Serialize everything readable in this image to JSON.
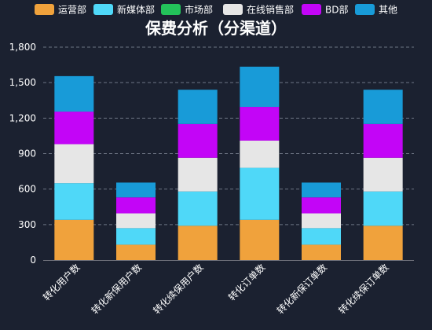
{
  "chart_data": {
    "type": "bar",
    "stacked": true,
    "title": "保费分析（分渠道）",
    "categories": [
      "转化用户数",
      "转化新保用户数",
      "转化续保用户数",
      "转化订单数",
      "转化新保订单数",
      "转化续保订单数"
    ],
    "series": [
      {
        "name": "运营部",
        "color": "#f0a23c",
        "values": [
          340,
          130,
          290,
          340,
          130,
          290
        ]
      },
      {
        "name": "新媒体部",
        "color": "#4fd8f8",
        "values": [
          310,
          140,
          290,
          440,
          140,
          290
        ]
      },
      {
        "name": "市场部",
        "color": "#23c25a",
        "values": [
          0,
          0,
          0,
          0,
          0,
          0
        ]
      },
      {
        "name": "在线销售部",
        "color": "#e6e6e6",
        "values": [
          330,
          125,
          285,
          230,
          125,
          285
        ]
      },
      {
        "name": "BD部",
        "color": "#c305f7",
        "values": [
          275,
          135,
          285,
          285,
          135,
          285
        ]
      },
      {
        "name": "其他",
        "color": "#189bd8",
        "values": [
          300,
          125,
          290,
          340,
          125,
          290
        ]
      }
    ],
    "y_ticks": [
      "0",
      "300",
      "600",
      "900",
      "1,200",
      "1,500",
      "1,800"
    ],
    "ylim": [
      0,
      1800
    ],
    "grid": true,
    "legend_position": "top"
  }
}
